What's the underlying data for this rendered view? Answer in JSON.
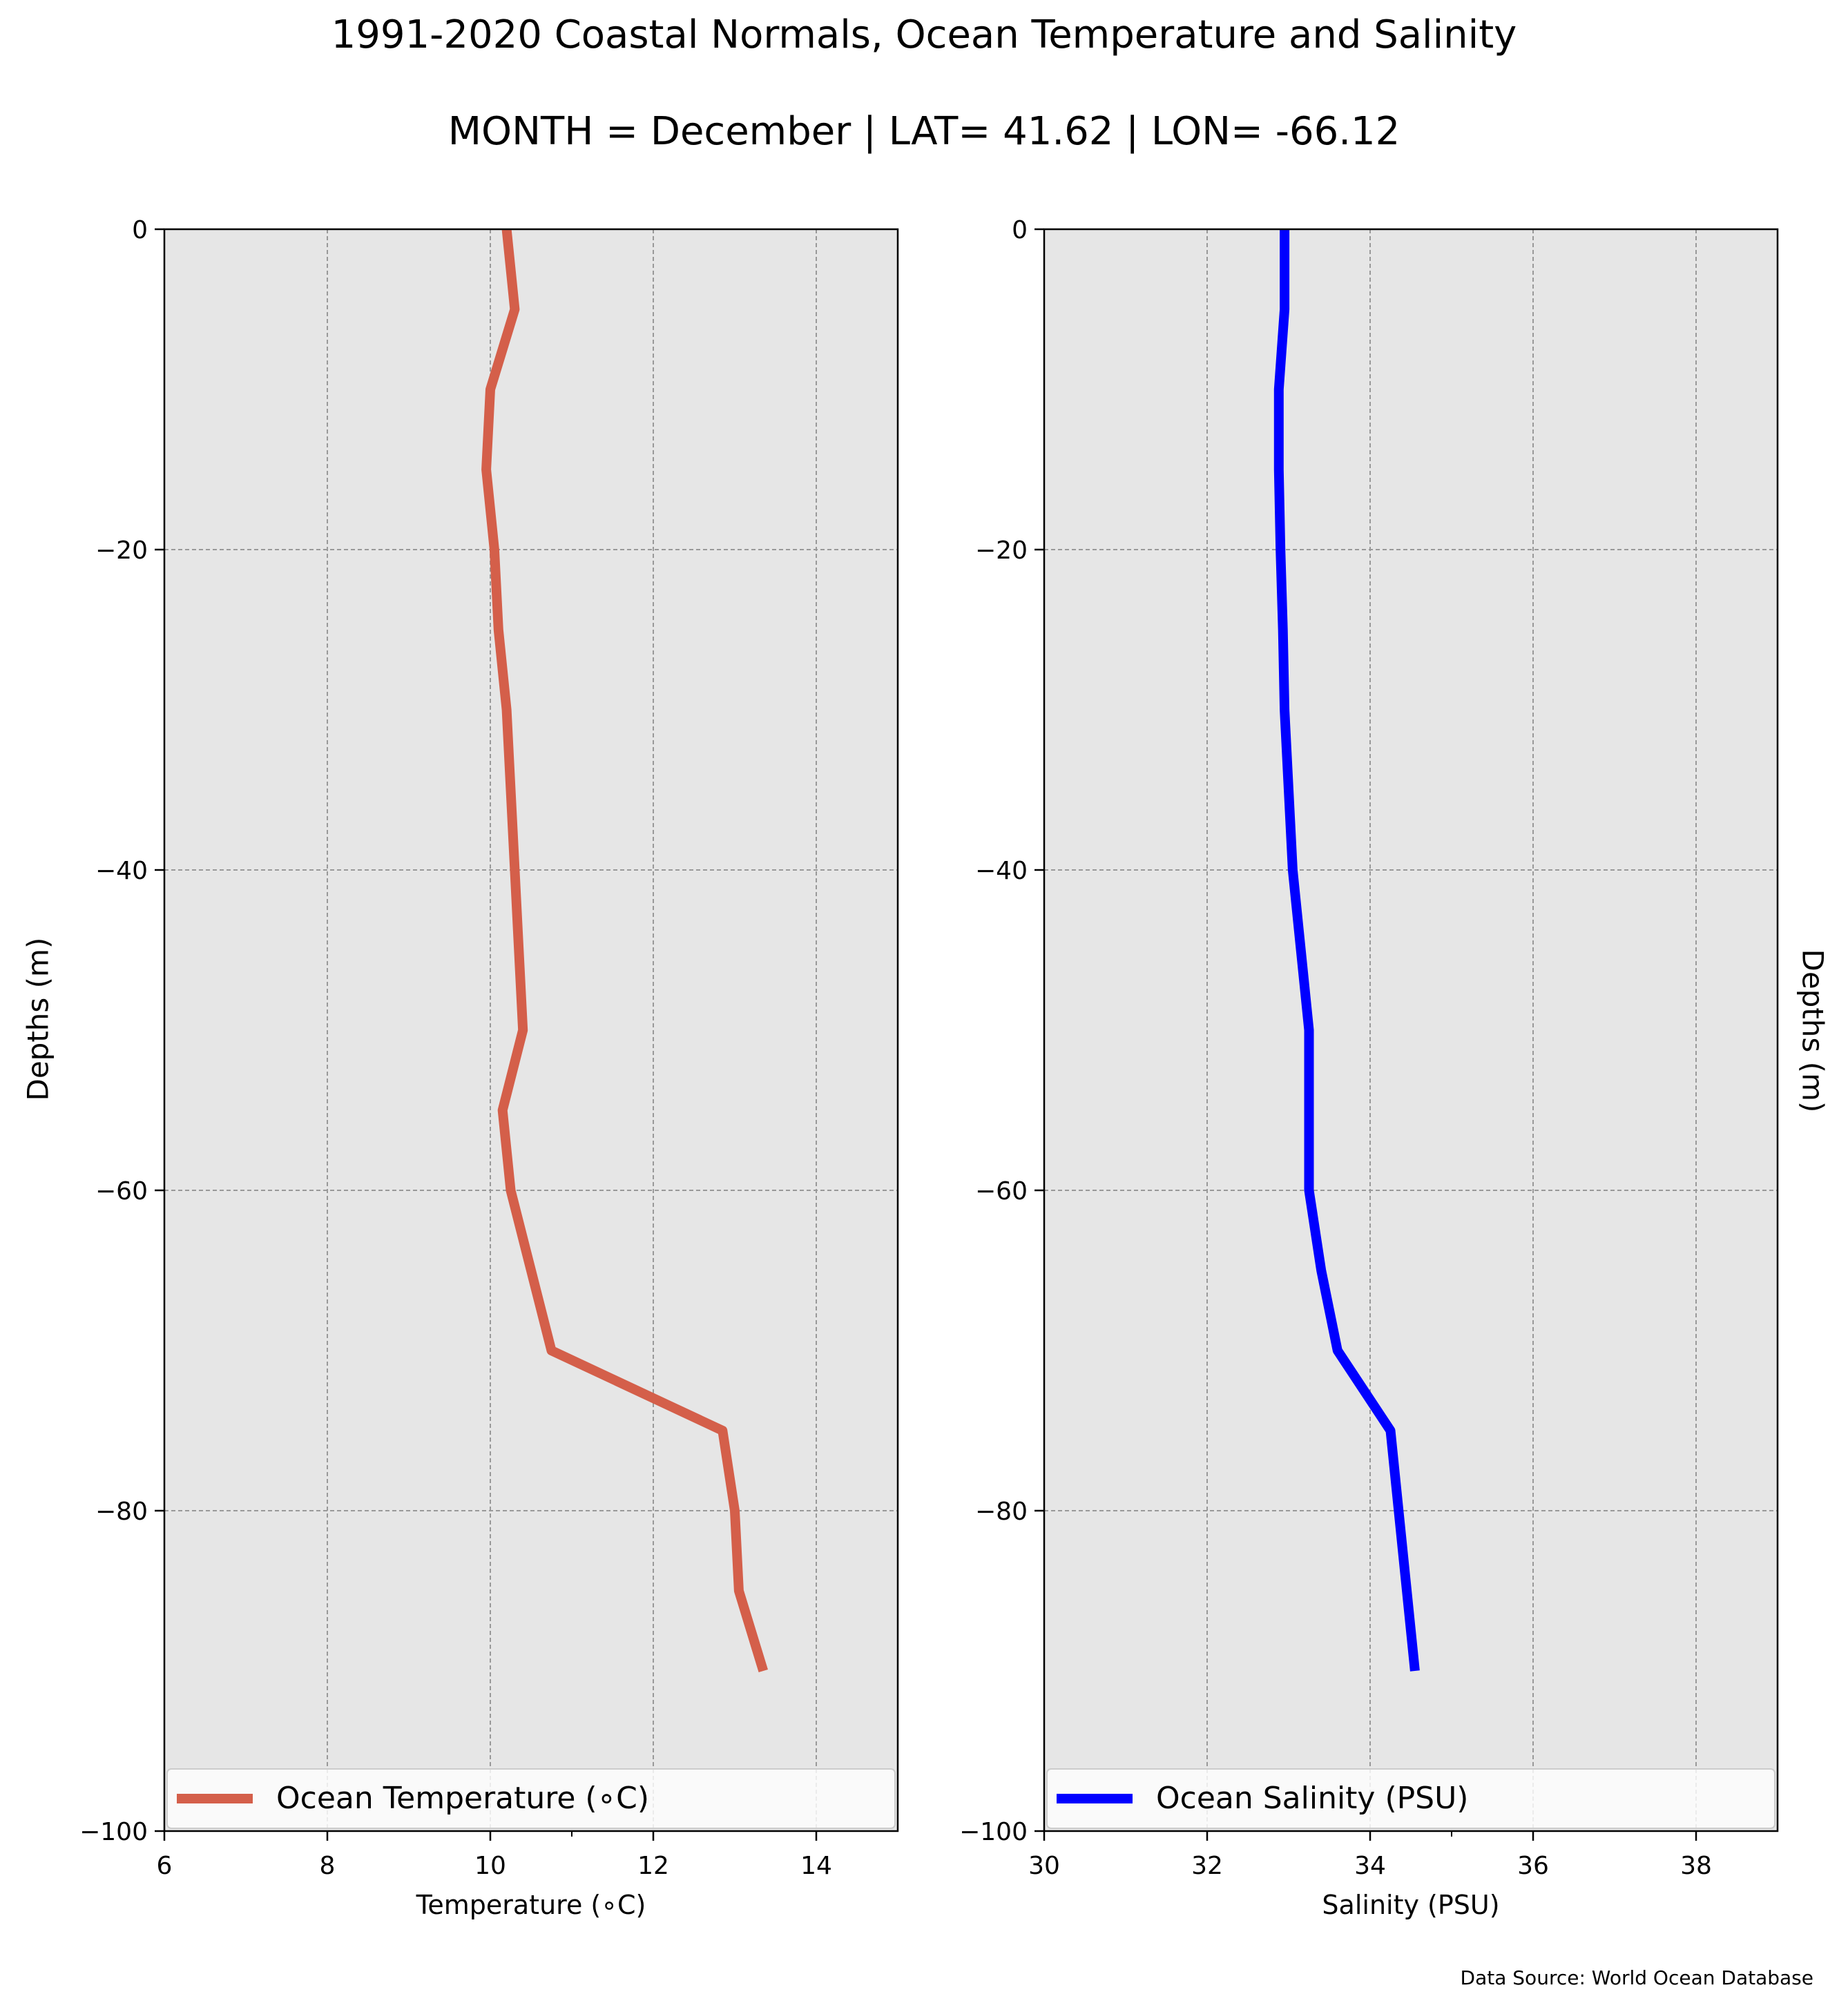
{
  "title": "1991-2020 Coastal Normals, Ocean Temperature and Salinity",
  "subtitle": "MONTH = December | LAT= 41.62 | LON= -66.12",
  "source": "Data Source: World Ocean Database",
  "ylabel_left": "Depths (m)",
  "ylabel_right": "Depths (m)",
  "chart_data": [
    {
      "type": "line",
      "panel": "left",
      "xlabel": "Temperature (∘C)",
      "ylabel": "Depths (m)",
      "xlim": [
        6,
        15
      ],
      "ylim": [
        -100,
        0
      ],
      "xticks": [
        6,
        8,
        10,
        12,
        14
      ],
      "yticks": [
        0,
        -20,
        -40,
        -60,
        -80,
        -100
      ],
      "grid": true,
      "legend_placement": "bottom",
      "series": [
        {
          "name": "Ocean Temperature (∘C)",
          "color": "#d45f4a",
          "x": [
            10.2,
            10.3,
            10.0,
            9.95,
            10.05,
            10.1,
            10.2,
            10.3,
            10.35,
            10.4,
            10.15,
            10.25,
            10.5,
            10.75,
            12.85,
            13.0,
            13.05,
            13.35
          ],
          "y": [
            0,
            -5,
            -10,
            -15,
            -20,
            -25,
            -30,
            -40,
            -45,
            -50,
            -55,
            -60,
            -65,
            -70,
            -75,
            -80,
            -85,
            -90
          ]
        }
      ]
    },
    {
      "type": "line",
      "panel": "right",
      "xlabel": "Salinity (PSU)",
      "ylabel": "Depths (m)",
      "xlim": [
        30,
        39
      ],
      "ylim": [
        -100,
        0
      ],
      "xticks": [
        30,
        32,
        34,
        36,
        38
      ],
      "yticks": [
        0,
        -20,
        -40,
        -60,
        -80,
        -100
      ],
      "grid": true,
      "legend_placement": "bottom",
      "series": [
        {
          "name": "Ocean Salinity (PSU)",
          "color": "#0000ff",
          "x": [
            32.95,
            32.95,
            32.88,
            32.88,
            32.9,
            32.93,
            32.95,
            33.05,
            33.15,
            33.25,
            33.25,
            33.25,
            33.4,
            33.6,
            34.25,
            34.35,
            34.45,
            34.55
          ],
          "y": [
            0,
            -5,
            -10,
            -15,
            -20,
            -25,
            -30,
            -40,
            -45,
            -50,
            -55,
            -60,
            -65,
            -70,
            -75,
            -80,
            -85,
            -90
          ]
        }
      ]
    }
  ]
}
